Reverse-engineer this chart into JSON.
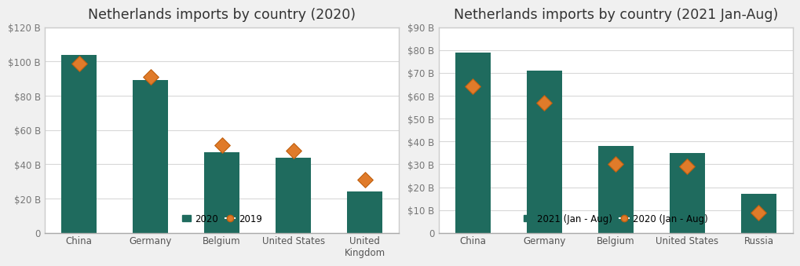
{
  "chart1": {
    "title": "Netherlands imports by country (2020)",
    "categories": [
      "China",
      "Germany",
      "Belgium",
      "United States",
      "United\nKingdom"
    ],
    "bar_values": [
      104,
      89,
      47,
      44,
      24
    ],
    "dot_values": [
      99,
      91,
      51,
      48,
      31
    ],
    "ylim": [
      0,
      120
    ],
    "yticks": [
      0,
      20,
      40,
      60,
      80,
      100,
      120
    ],
    "ytick_labels": [
      "0",
      "$20 B",
      "$40 B",
      "$60 B",
      "$80 B",
      "$100 B",
      "$120 B"
    ],
    "bar_label": "2020",
    "dot_label": "2019"
  },
  "chart2": {
    "title": "Netherlands imports by country (2021 Jan-Aug)",
    "categories": [
      "China",
      "Germany",
      "Belgium",
      "United States",
      "Russia"
    ],
    "bar_values": [
      79,
      71,
      38,
      35,
      17
    ],
    "dot_values": [
      64,
      57,
      30,
      29,
      9
    ],
    "ylim": [
      0,
      90
    ],
    "yticks": [
      0,
      10,
      20,
      30,
      40,
      50,
      60,
      70,
      80,
      90
    ],
    "ytick_labels": [
      "0",
      "$10 B",
      "$20 B",
      "$30 B",
      "$40 B",
      "$50 B",
      "$60 B",
      "$70 B",
      "$80 B",
      "$90 B"
    ],
    "bar_label": "2021 (Jan - Aug)",
    "dot_label": "2020 (Jan - Aug)"
  },
  "bar_color": "#1f6b5e",
  "dot_color": "#e07b2a",
  "dot_edge_color": "#c06010",
  "background_color": "#f0f0f0",
  "panel_color": "#ffffff",
  "grid_color": "#d8d8d8",
  "title_fontsize": 12.5,
  "tick_fontsize": 8.5,
  "legend_fontsize": 8.5,
  "bar_width": 0.5
}
